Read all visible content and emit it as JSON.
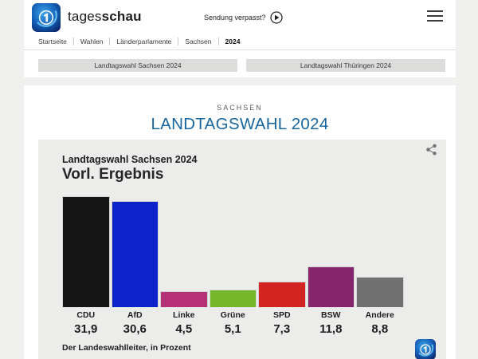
{
  "header": {
    "brand_regular": "tages",
    "brand_bold": "schau",
    "sendung_verpasst": "Sendung verpasst?"
  },
  "breadcrumb": {
    "items": [
      "Startseite",
      "Wahlen",
      "Länderparlamente",
      "Sachsen",
      "2024"
    ]
  },
  "quick_links": [
    {
      "label": "Landtagswahl Sachsen 2024"
    },
    {
      "label": "Landtagswahl Thüringen 2024"
    }
  ],
  "main": {
    "kicker": "SACHSEN",
    "title": "LANDTAGSWAHL 2024"
  },
  "chart_data": {
    "type": "bar",
    "title": "Landtagswahl Sachsen 2024",
    "subtitle": "Vorl. Ergebnis",
    "categories": [
      "CDU",
      "AfD",
      "Linke",
      "Grüne",
      "SPD",
      "BSW",
      "Andere"
    ],
    "values": [
      31.9,
      30.6,
      4.5,
      5.1,
      7.3,
      11.8,
      8.8
    ],
    "value_labels": [
      "31,9",
      "30,6",
      "4,5",
      "5,1",
      "7,3",
      "11,8",
      "8,8"
    ],
    "colors": [
      "#161616",
      "#0c23cc",
      "#b53077",
      "#76b72a",
      "#d32422",
      "#852468",
      "#707070"
    ],
    "ylim": [
      0,
      32
    ],
    "unit": "Prozent",
    "source": "Der Landeswahlleiter, in Prozent",
    "title_color": "#19669f"
  }
}
